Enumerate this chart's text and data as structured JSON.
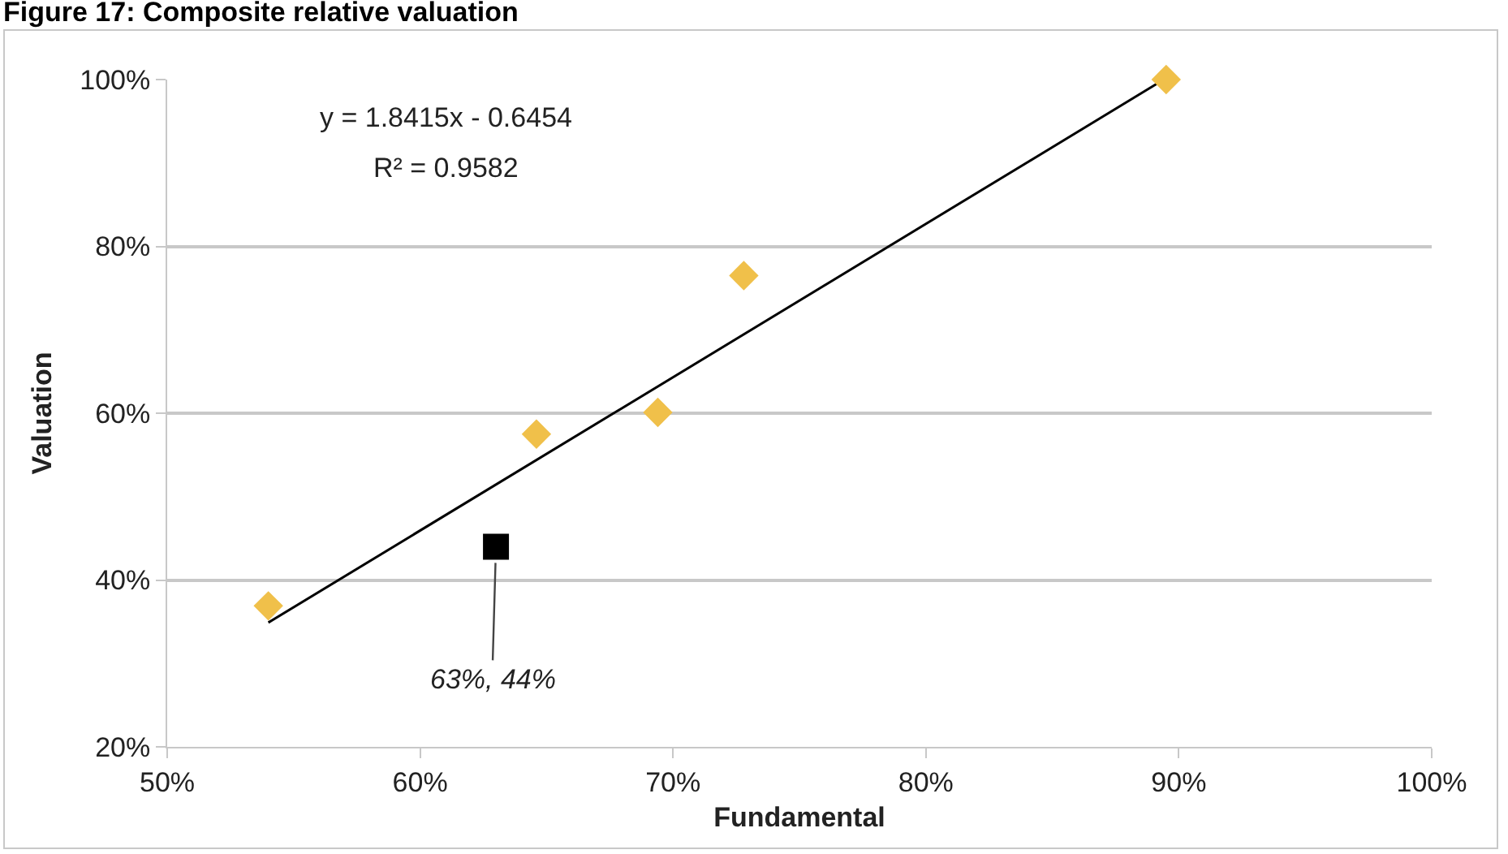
{
  "chart_data": {
    "type": "scatter",
    "title": "Figure 17: Composite relative valuation",
    "xlabel": "Fundamental",
    "ylabel": "Valuation",
    "series": [
      {
        "color": "#f0c04a",
        "marker": "diamond",
        "x": [
          54.0,
          64.6,
          69.4,
          72.8,
          89.5
        ],
        "values": [
          36.9,
          57.5,
          60.1,
          76.5,
          100
        ]
      },
      {
        "color": "#000000",
        "marker": "square",
        "x": [
          63
        ],
        "values": [
          44
        ]
      },
      {
        "type": "line",
        "color": "#000000",
        "marker": "none",
        "line_style": "solid",
        "x": [
          54.0,
          89.3
        ],
        "values": [
          34.9,
          99.8
        ]
      }
    ],
    "annotations": [
      "y = 1.8415x - 0.6454",
      "R² = 0.9582",
      {
        "text": "63%, 44%",
        "x": 63,
        "y": 44
      }
    ],
    "xlim": [
      50,
      100
    ],
    "ylim": [
      20,
      100
    ],
    "xticks": [
      {
        "value": 50,
        "label": "50%"
      },
      {
        "value": 60,
        "label": "60%"
      },
      {
        "value": 70,
        "label": "70%"
      },
      {
        "value": 80,
        "label": "80%"
      },
      {
        "value": 90,
        "label": "90%"
      },
      {
        "value": 100,
        "label": "100%"
      }
    ],
    "yticks": [
      {
        "value": 20,
        "label": "20%"
      },
      {
        "value": 40,
        "label": "40%"
      },
      {
        "value": 60,
        "label": "60%"
      },
      {
        "value": 80,
        "label": "80%"
      },
      {
        "value": 100,
        "label": "100%"
      }
    ],
    "grid": "y"
  }
}
